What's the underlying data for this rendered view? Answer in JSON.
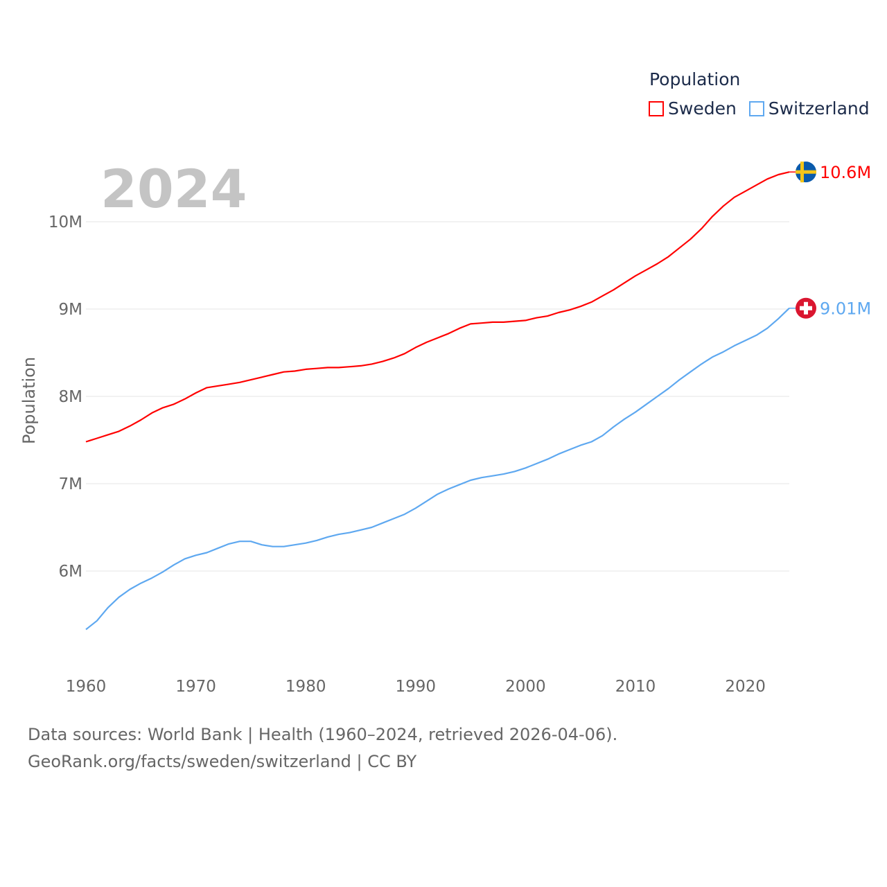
{
  "legend": {
    "title": "Population",
    "items": [
      {
        "label": "Sweden",
        "color": "#ff0000"
      },
      {
        "label": "Switzerland",
        "color": "#5ea8f0"
      }
    ]
  },
  "current_year": "2024",
  "footer": {
    "line1": "Data sources: World Bank | Health (1960–2024, retrieved 2026-04-06).",
    "line2": "GeoRank.org/facts/sweden/switzerland | CC BY"
  },
  "chart_data": {
    "type": "line",
    "title": "Population",
    "xlabel": "",
    "ylabel": "Population",
    "xlim": [
      1960,
      2024
    ],
    "ylim": [
      5,
      10.6
    ],
    "x_ticks": [
      "1960",
      "1970",
      "1980",
      "1990",
      "2000",
      "2010",
      "2020"
    ],
    "y_ticks": [
      {
        "value": 6,
        "label": "6M"
      },
      {
        "value": 7,
        "label": "7M"
      },
      {
        "value": 8,
        "label": "8M"
      },
      {
        "value": 9,
        "label": "9M"
      },
      {
        "value": 10,
        "label": "10M"
      }
    ],
    "x_start": 1960,
    "series": [
      {
        "name": "Sweden",
        "color": "#ff0000",
        "end_label": "10.6M",
        "flag": "sweden-flag",
        "values": [
          7.48,
          7.52,
          7.56,
          7.6,
          7.66,
          7.73,
          7.81,
          7.87,
          7.91,
          7.97,
          8.04,
          8.1,
          8.12,
          8.14,
          8.16,
          8.19,
          8.22,
          8.25,
          8.28,
          8.29,
          8.31,
          8.32,
          8.33,
          8.33,
          8.34,
          8.35,
          8.37,
          8.4,
          8.44,
          8.49,
          8.56,
          8.62,
          8.67,
          8.72,
          8.78,
          8.83,
          8.84,
          8.85,
          8.85,
          8.86,
          8.87,
          8.9,
          8.92,
          8.96,
          8.99,
          9.03,
          9.08,
          9.15,
          9.22,
          9.3,
          9.38,
          9.45,
          9.52,
          9.6,
          9.7,
          9.8,
          9.92,
          10.06,
          10.18,
          10.28,
          10.35,
          10.42,
          10.49,
          10.54,
          10.57
        ]
      },
      {
        "name": "Switzerland",
        "color": "#5ea8f0",
        "end_label": "9.01M",
        "flag": "switzerland-flag",
        "values": [
          5.33,
          5.43,
          5.58,
          5.7,
          5.79,
          5.86,
          5.92,
          5.99,
          6.07,
          6.14,
          6.18,
          6.21,
          6.26,
          6.31,
          6.34,
          6.34,
          6.3,
          6.28,
          6.28,
          6.3,
          6.32,
          6.35,
          6.39,
          6.42,
          6.44,
          6.47,
          6.5,
          6.55,
          6.6,
          6.65,
          6.72,
          6.8,
          6.88,
          6.94,
          6.99,
          7.04,
          7.07,
          7.09,
          7.11,
          7.14,
          7.18,
          7.23,
          7.28,
          7.34,
          7.39,
          7.44,
          7.48,
          7.55,
          7.65,
          7.74,
          7.82,
          7.91,
          8.0,
          8.09,
          8.19,
          8.28,
          8.37,
          8.45,
          8.51,
          8.58,
          8.64,
          8.7,
          8.78,
          8.89,
          9.01
        ]
      }
    ]
  }
}
